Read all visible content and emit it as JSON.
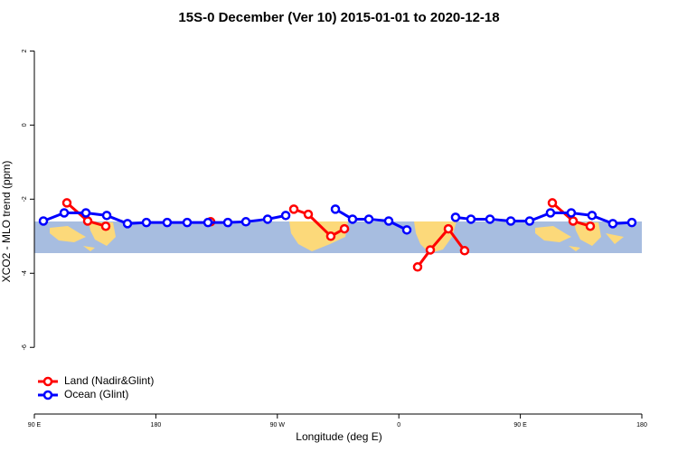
{
  "chart_data": {
    "type": "line",
    "title": "15S-0 December (Ver 10)   2015-01-01 to 2020-12-18",
    "x_label": "Longitude (deg E)",
    "y_label": "XCO2 - MLO trend (ppm)",
    "xlim": [
      90,
      540
    ],
    "ylim": [
      -7.8,
      2.4
    ],
    "xticks": [
      {
        "value": 90,
        "label": "90 E"
      },
      180,
      {
        "value": 270,
        "label": "90 W"
      },
      {
        "value": 360,
        "label": "0"
      },
      {
        "value": 450,
        "label": "90 E"
      },
      {
        "value": 540,
        "label": "180"
      }
    ],
    "yticks": [
      2,
      0,
      -2,
      -4,
      -6
    ],
    "legend": "bottom-left",
    "series": [
      {
        "name": "Land (Nadir&Glint)",
        "color": "#ff0000",
        "x": [
          114.1,
          129.5,
          142.9,
          null,
          220.6,
          null,
          282.2,
          292.9,
          309.6,
          319.7,
          null,
          373.9,
          383.3,
          396.7,
          408.7,
          null,
          473.7,
          489.1,
          501.8
        ],
        "values": [
          -2.1,
          -2.59,
          -2.73,
          null,
          -2.61,
          null,
          -2.27,
          -2.41,
          -3.0,
          -2.8,
          null,
          -3.83,
          -3.37,
          -2.8,
          -3.39,
          null,
          -2.1,
          -2.59,
          -2.73
        ]
      },
      {
        "name": "Ocean (Glint)",
        "color": "#0000ff",
        "x": [
          96.7,
          112.1,
          128.2,
          143.6,
          159,
          173,
          188.4,
          203.2,
          218.6,
          233.3,
          246.7,
          262.8,
          276.2,
          null,
          313,
          325.7,
          337.8,
          352.5,
          365.9,
          null,
          402,
          413.4,
          427.5,
          442.9,
          456.9,
          472.3,
          487.7,
          503.1,
          518.5,
          532.6
        ],
        "values": [
          -2.59,
          -2.37,
          -2.37,
          -2.44,
          -2.66,
          -2.63,
          -2.63,
          -2.63,
          -2.63,
          -2.63,
          -2.61,
          -2.54,
          -2.44,
          null,
          -2.27,
          -2.54,
          -2.54,
          -2.59,
          -2.83,
          null,
          -2.49,
          -2.54,
          -2.54,
          -2.59,
          -2.59,
          -2.37,
          -2.37,
          -2.44,
          -2.66,
          -2.63
        ]
      }
    ]
  }
}
